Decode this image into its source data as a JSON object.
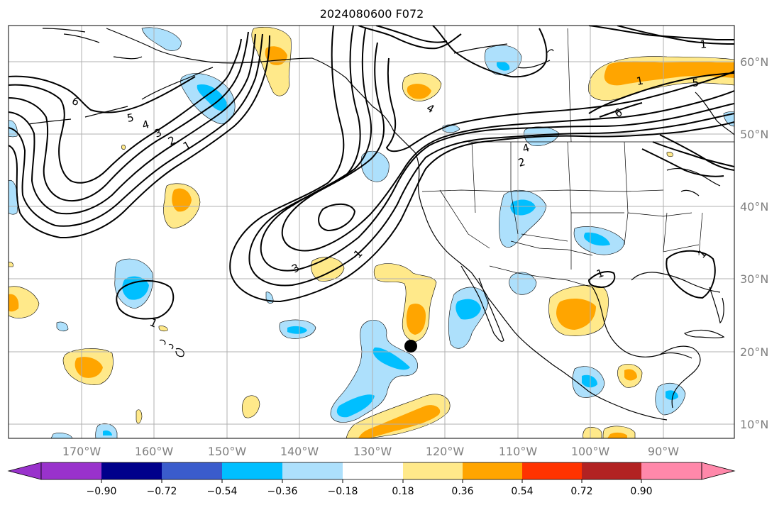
{
  "title": "2024080600 F072",
  "map": {
    "longitude_labels": [
      "170°W",
      "160°W",
      "150°W",
      "140°W",
      "130°W",
      "120°W",
      "110°W",
      "100°W",
      "90°W"
    ],
    "latitude_labels": [
      "60°N",
      "50°N",
      "40°N",
      "30°N",
      "20°N",
      "10°N"
    ],
    "contour_labels": [
      "6",
      "5",
      "4",
      "3",
      "2",
      "1",
      "1",
      "2",
      "4",
      "5",
      "6",
      "1",
      "4",
      "3",
      "1",
      "1",
      "1",
      "1"
    ],
    "marker": "storm-center-dot"
  },
  "colorbar": {
    "tick_labels": [
      "−0.90",
      "−0.72",
      "−0.54",
      "−0.36",
      "−0.18",
      "0.18",
      "0.36",
      "0.54",
      "0.72",
      "0.90"
    ],
    "colors": [
      "#9932cc",
      "#00008b",
      "#3a5ccc",
      "#00bfff",
      "#ade0fc",
      "#ffffff",
      "#ffe98a",
      "#ffa500",
      "#ff3300",
      "#b22222",
      "#ff88aa"
    ]
  }
}
